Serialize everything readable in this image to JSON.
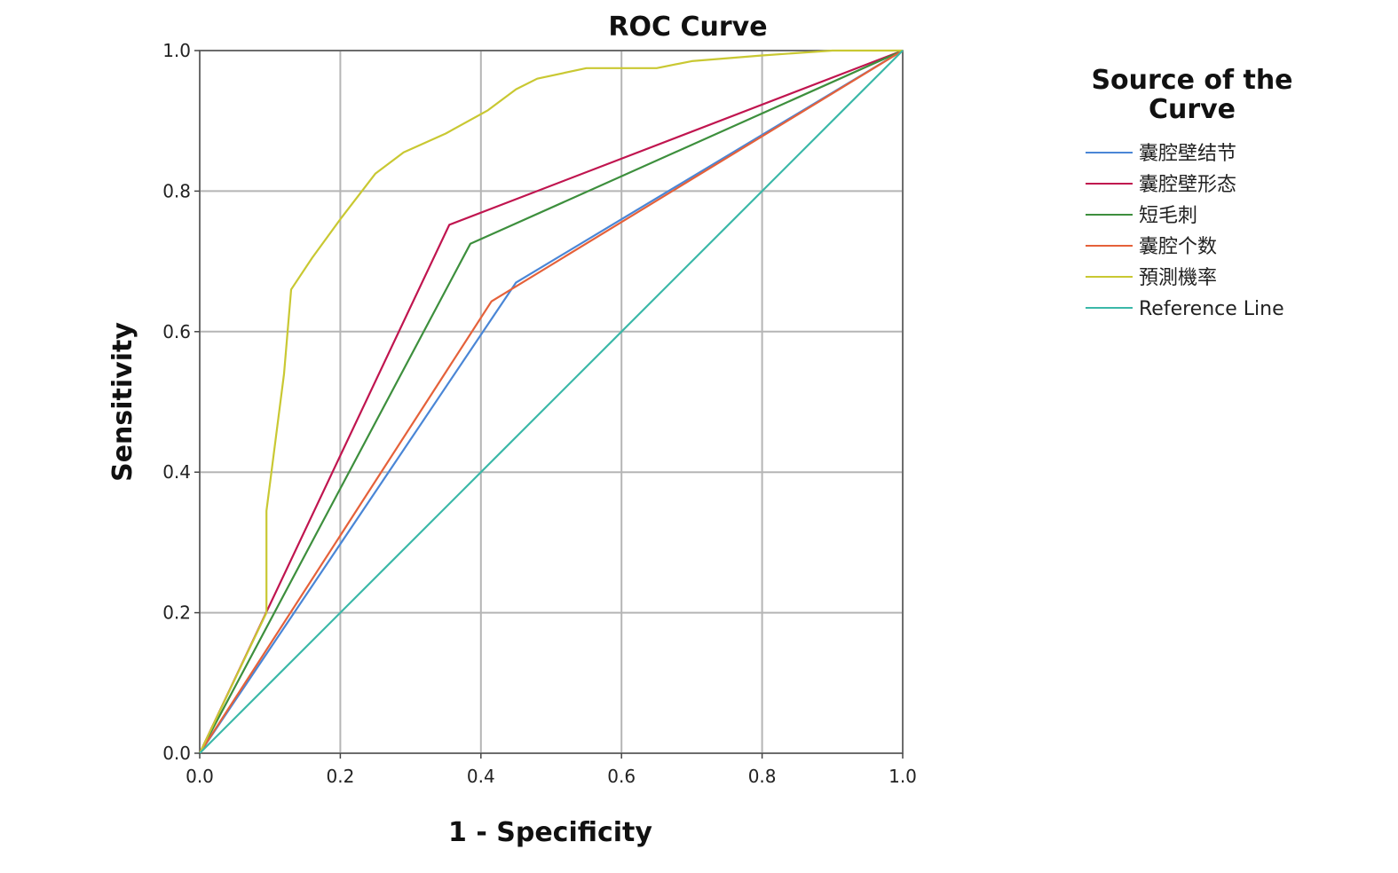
{
  "chart_data": {
    "type": "line",
    "title": "ROC Curve",
    "xlabel": "1 - Specificity",
    "ylabel": "Sensitivity",
    "xlim": [
      0,
      1
    ],
    "ylim": [
      0,
      1
    ],
    "x_ticks": [
      "0.0",
      "0.2",
      "0.4",
      "0.6",
      "0.8",
      "1.0"
    ],
    "y_ticks": [
      "0.0",
      "0.2",
      "0.4",
      "0.6",
      "0.8",
      "1.0"
    ],
    "grid": true,
    "legend_title": "Source of the\nCurve",
    "legend_position": "right",
    "series": [
      {
        "name": "囊腔壁结节",
        "color": "#4a86d6",
        "points": [
          [
            0,
            0
          ],
          [
            0.45,
            0.67
          ],
          [
            1,
            1
          ]
        ]
      },
      {
        "name": "囊腔壁形态",
        "color": "#c0154f",
        "points": [
          [
            0,
            0
          ],
          [
            0.355,
            0.752
          ],
          [
            1,
            1
          ]
        ]
      },
      {
        "name": "短毛刺",
        "color": "#3d8f3d",
        "points": [
          [
            0,
            0
          ],
          [
            0.385,
            0.725
          ],
          [
            1,
            1
          ]
        ]
      },
      {
        "name": "囊腔个数",
        "color": "#e5613a",
        "points": [
          [
            0,
            0
          ],
          [
            0.415,
            0.643
          ],
          [
            1,
            1
          ]
        ]
      },
      {
        "name": "預測機率",
        "color": "#c9c832",
        "points": [
          [
            0,
            0
          ],
          [
            0.095,
            0.2
          ],
          [
            0.095,
            0.345
          ],
          [
            0.12,
            0.54
          ],
          [
            0.13,
            0.66
          ],
          [
            0.16,
            0.705
          ],
          [
            0.2,
            0.76
          ],
          [
            0.25,
            0.825
          ],
          [
            0.29,
            0.855
          ],
          [
            0.35,
            0.882
          ],
          [
            0.41,
            0.915
          ],
          [
            0.45,
            0.945
          ],
          [
            0.48,
            0.96
          ],
          [
            0.55,
            0.975
          ],
          [
            0.62,
            0.975
          ],
          [
            0.65,
            0.975
          ],
          [
            0.7,
            0.985
          ],
          [
            0.8,
            0.993
          ],
          [
            0.9,
            1
          ],
          [
            1,
            1
          ]
        ]
      },
      {
        "name": "Reference Line",
        "color": "#3bb8a8",
        "points": [
          [
            0,
            0
          ],
          [
            1,
            1
          ]
        ]
      }
    ]
  }
}
